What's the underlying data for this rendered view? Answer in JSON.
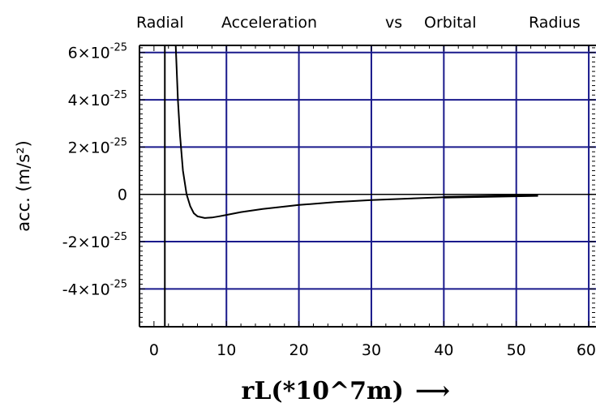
{
  "chart_data": {
    "type": "line",
    "title_words": [
      "Radial",
      "Acceleration",
      "vs",
      "Orbital",
      "Radius"
    ],
    "xlabel": "rL(*10^7m)",
    "xlabel_arrow": "⟶",
    "ylabel": "acc. (m/s²)",
    "xlim": [
      -2,
      61
    ],
    "ylim": [
      -5.6e-25,
      6.3e-25
    ],
    "x_ticks": [
      {
        "value": 0,
        "label": "0"
      },
      {
        "value": 10,
        "label": "10"
      },
      {
        "value": 20,
        "label": "20"
      },
      {
        "value": 30,
        "label": "30"
      },
      {
        "value": 40,
        "label": "40"
      },
      {
        "value": 50,
        "label": "50"
      },
      {
        "value": 60,
        "label": "60"
      }
    ],
    "y_ticks": [
      {
        "value": 6e-25,
        "mant": "6×10",
        "exp": "-25"
      },
      {
        "value": 4e-25,
        "mant": "4×10",
        "exp": "-25"
      },
      {
        "value": 2e-25,
        "mant": "2×10",
        "exp": "-25"
      },
      {
        "value": 0,
        "mant": "0",
        "exp": ""
      },
      {
        "value": -2e-25,
        "mant": "-2×10",
        "exp": "-25"
      },
      {
        "value": -4e-25,
        "mant": "-4×10",
        "exp": "-25"
      }
    ],
    "grid": true,
    "grid_color": "#1a1a8c",
    "vertical_line_x": 1.5,
    "series": [
      {
        "x": [
          3.0,
          3.3,
          3.6,
          4.0,
          4.5,
          5.0,
          5.5,
          6.0,
          7.0,
          8.0,
          9.0,
          10.0,
          12.0,
          15.0,
          20.0,
          25.0,
          30.0,
          35.0,
          40.0,
          45.0,
          50.0,
          53.0
        ],
        "y": [
          6.3e-25,
          4e-25,
          2.5e-25,
          1e-25,
          0.0,
          -5e-26,
          -8e-26,
          -9.3e-26,
          -1e-25,
          -9.8e-26,
          -9.3e-26,
          -8.7e-26,
          -7.5e-26,
          -6.2e-26,
          -4.5e-26,
          -3.3e-26,
          -2.4e-26,
          -1.8e-26,
          -1.2e-26,
          -9e-27,
          -6e-27,
          -5e-27
        ]
      }
    ]
  }
}
